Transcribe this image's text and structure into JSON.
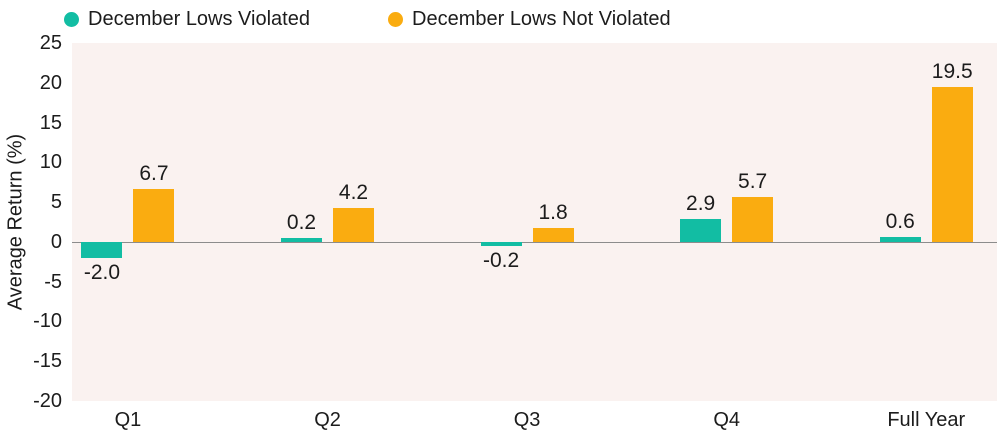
{
  "chart_data": {
    "type": "bar",
    "title": "",
    "xlabel": "",
    "ylabel": "Average Return (%)",
    "categories": [
      "Q1",
      "Q2",
      "Q3",
      "Q4",
      "Full Year"
    ],
    "series": [
      {
        "name": "December Lows Violated",
        "color": "#12BDA3",
        "values": [
          -2.0,
          0.2,
          -0.2,
          2.9,
          0.6
        ]
      },
      {
        "name": "December Lows Not Violated",
        "color": "#FAAC10",
        "values": [
          6.7,
          4.2,
          1.8,
          5.7,
          19.5
        ]
      }
    ],
    "ylim": [
      -20,
      25
    ],
    "ytick_step": 5,
    "ytick_labels": [
      "25",
      "20",
      "15",
      "10",
      "5",
      "0",
      "-5",
      "-10",
      "-15",
      "-20"
    ],
    "grid": false,
    "legend_position": "top",
    "value_labels_shown": true,
    "colors": {
      "plot_background": "#FAF2F0",
      "page_background": "#FFFFFF",
      "zero_line": "#8C8C8C",
      "text": "#1C1C1C"
    }
  }
}
